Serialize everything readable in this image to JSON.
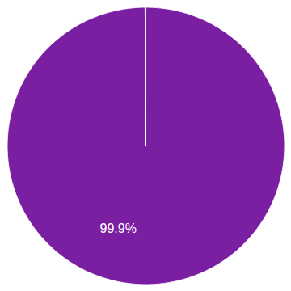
{
  "chart_data": {
    "type": "pie",
    "values": [
      99.9,
      0.1
    ],
    "colors": [
      "#7B1FA2",
      "#6A1090"
    ],
    "annotations": [
      "99.9%"
    ]
  }
}
